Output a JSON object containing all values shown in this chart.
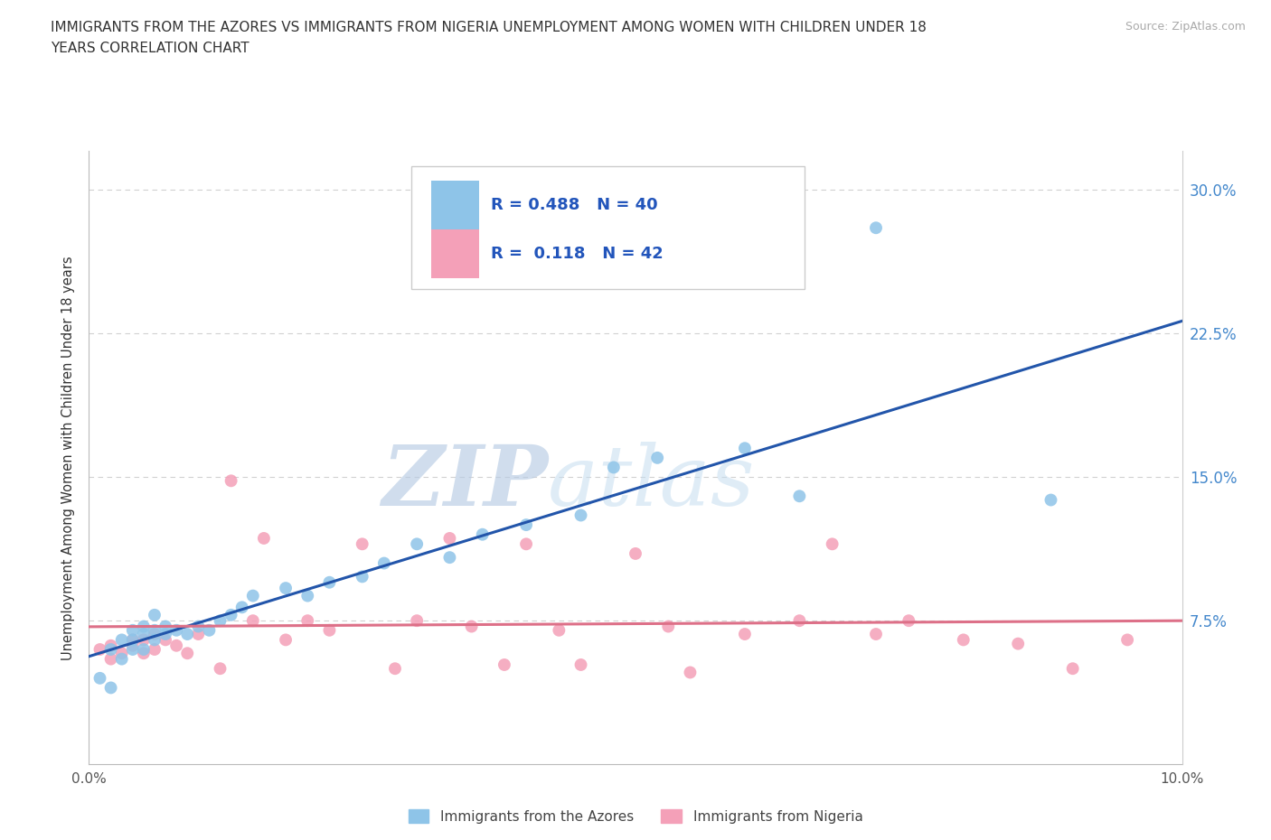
{
  "title_line1": "IMMIGRANTS FROM THE AZORES VS IMMIGRANTS FROM NIGERIA UNEMPLOYMENT AMONG WOMEN WITH CHILDREN UNDER 18",
  "title_line2": "YEARS CORRELATION CHART",
  "source": "Source: ZipAtlas.com",
  "ylabel": "Unemployment Among Women with Children Under 18 years",
  "xlim": [
    0.0,
    0.1
  ],
  "ylim": [
    0.0,
    0.32
  ],
  "xticks": [
    0.0,
    0.02,
    0.04,
    0.06,
    0.08,
    0.1
  ],
  "yticks": [
    0.0,
    0.075,
    0.15,
    0.225,
    0.3
  ],
  "series1_label": "Immigrants from the Azores",
  "series2_label": "Immigrants from Nigeria",
  "R1": 0.488,
  "N1": 40,
  "R2": 0.118,
  "N2": 42,
  "color1": "#8ec4e8",
  "color2": "#f4a0b8",
  "trendline1_color": "#2255aa",
  "trendline2_color": "#dd7088",
  "background_color": "#ffffff",
  "grid_color": "#cccccc",
  "axis_label_color": "#4488cc",
  "azores_x": [
    0.001,
    0.002,
    0.002,
    0.003,
    0.003,
    0.004,
    0.004,
    0.004,
    0.005,
    0.005,
    0.005,
    0.006,
    0.006,
    0.006,
    0.007,
    0.007,
    0.008,
    0.009,
    0.01,
    0.011,
    0.012,
    0.013,
    0.014,
    0.015,
    0.018,
    0.02,
    0.022,
    0.025,
    0.027,
    0.03,
    0.033,
    0.036,
    0.04,
    0.045,
    0.048,
    0.052,
    0.06,
    0.065,
    0.072,
    0.088
  ],
  "azores_y": [
    0.045,
    0.04,
    0.06,
    0.055,
    0.065,
    0.06,
    0.065,
    0.07,
    0.06,
    0.068,
    0.072,
    0.065,
    0.07,
    0.078,
    0.068,
    0.072,
    0.07,
    0.068,
    0.072,
    0.07,
    0.075,
    0.078,
    0.082,
    0.088,
    0.092,
    0.088,
    0.095,
    0.098,
    0.105,
    0.115,
    0.108,
    0.12,
    0.125,
    0.13,
    0.155,
    0.16,
    0.165,
    0.14,
    0.28,
    0.138
  ],
  "nigeria_x": [
    0.001,
    0.002,
    0.002,
    0.003,
    0.004,
    0.004,
    0.005,
    0.005,
    0.006,
    0.006,
    0.007,
    0.008,
    0.009,
    0.01,
    0.012,
    0.013,
    0.015,
    0.016,
    0.018,
    0.02,
    0.022,
    0.025,
    0.028,
    0.03,
    0.033,
    0.035,
    0.038,
    0.04,
    0.043,
    0.045,
    0.05,
    0.053,
    0.055,
    0.06,
    0.065,
    0.068,
    0.072,
    0.075,
    0.08,
    0.085,
    0.09,
    0.095
  ],
  "nigeria_y": [
    0.06,
    0.062,
    0.055,
    0.058,
    0.065,
    0.062,
    0.058,
    0.065,
    0.06,
    0.068,
    0.065,
    0.062,
    0.058,
    0.068,
    0.05,
    0.148,
    0.075,
    0.118,
    0.065,
    0.075,
    0.07,
    0.115,
    0.05,
    0.075,
    0.118,
    0.072,
    0.052,
    0.115,
    0.07,
    0.052,
    0.11,
    0.072,
    0.048,
    0.068,
    0.075,
    0.115,
    0.068,
    0.075,
    0.065,
    0.063,
    0.05,
    0.065
  ]
}
